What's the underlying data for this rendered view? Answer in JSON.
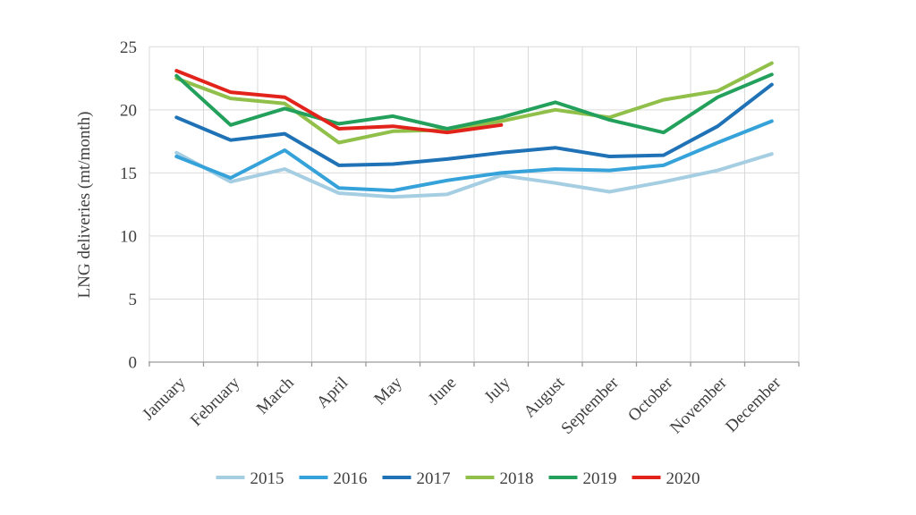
{
  "figure": {
    "background": "#ffffff"
  },
  "chart_data": {
    "type": "line",
    "title": "",
    "xlabel": "",
    "ylabel": "LNG deliveries (mt/month)",
    "ylim": [
      0,
      25
    ],
    "yticks": [
      0,
      5,
      10,
      15,
      20,
      25
    ],
    "grid": true,
    "legend_position": "bottom",
    "grid_color": "#d9d9d9",
    "axis_color": "#9b9b9b",
    "text_color": "#3f3f3f",
    "categories": [
      "January",
      "February",
      "March",
      "April",
      "May",
      "June",
      "July",
      "August",
      "September",
      "October",
      "November",
      "December"
    ],
    "series": [
      {
        "name": "2015",
        "color": "#a6cee3",
        "values": [
          16.6,
          14.3,
          15.3,
          13.4,
          13.1,
          13.3,
          14.8,
          14.2,
          13.5,
          14.3,
          15.2,
          16.5
        ]
      },
      {
        "name": "2016",
        "color": "#36a2da",
        "values": [
          16.3,
          14.6,
          16.8,
          13.8,
          13.6,
          14.4,
          15.0,
          15.3,
          15.2,
          15.6,
          17.4,
          19.1
        ]
      },
      {
        "name": "2017",
        "color": "#1f72b5",
        "values": [
          19.4,
          17.6,
          18.1,
          15.6,
          15.7,
          16.1,
          16.6,
          17.0,
          16.3,
          16.4,
          18.7,
          22.0
        ]
      },
      {
        "name": "2018",
        "color": "#90bf4a",
        "values": [
          22.5,
          20.9,
          20.5,
          17.4,
          18.3,
          18.4,
          19.1,
          20.0,
          19.4,
          20.8,
          21.5,
          23.7
        ]
      },
      {
        "name": "2019",
        "color": "#23a15c",
        "values": [
          22.7,
          18.8,
          20.1,
          18.9,
          19.5,
          18.5,
          19.4,
          20.6,
          19.2,
          18.2,
          21.0,
          22.8
        ]
      },
      {
        "name": "2020",
        "color": "#e2231b",
        "values": [
          23.1,
          21.4,
          21.0,
          18.5,
          18.7,
          18.2,
          18.8,
          null,
          null,
          null,
          null,
          null
        ]
      }
    ]
  }
}
